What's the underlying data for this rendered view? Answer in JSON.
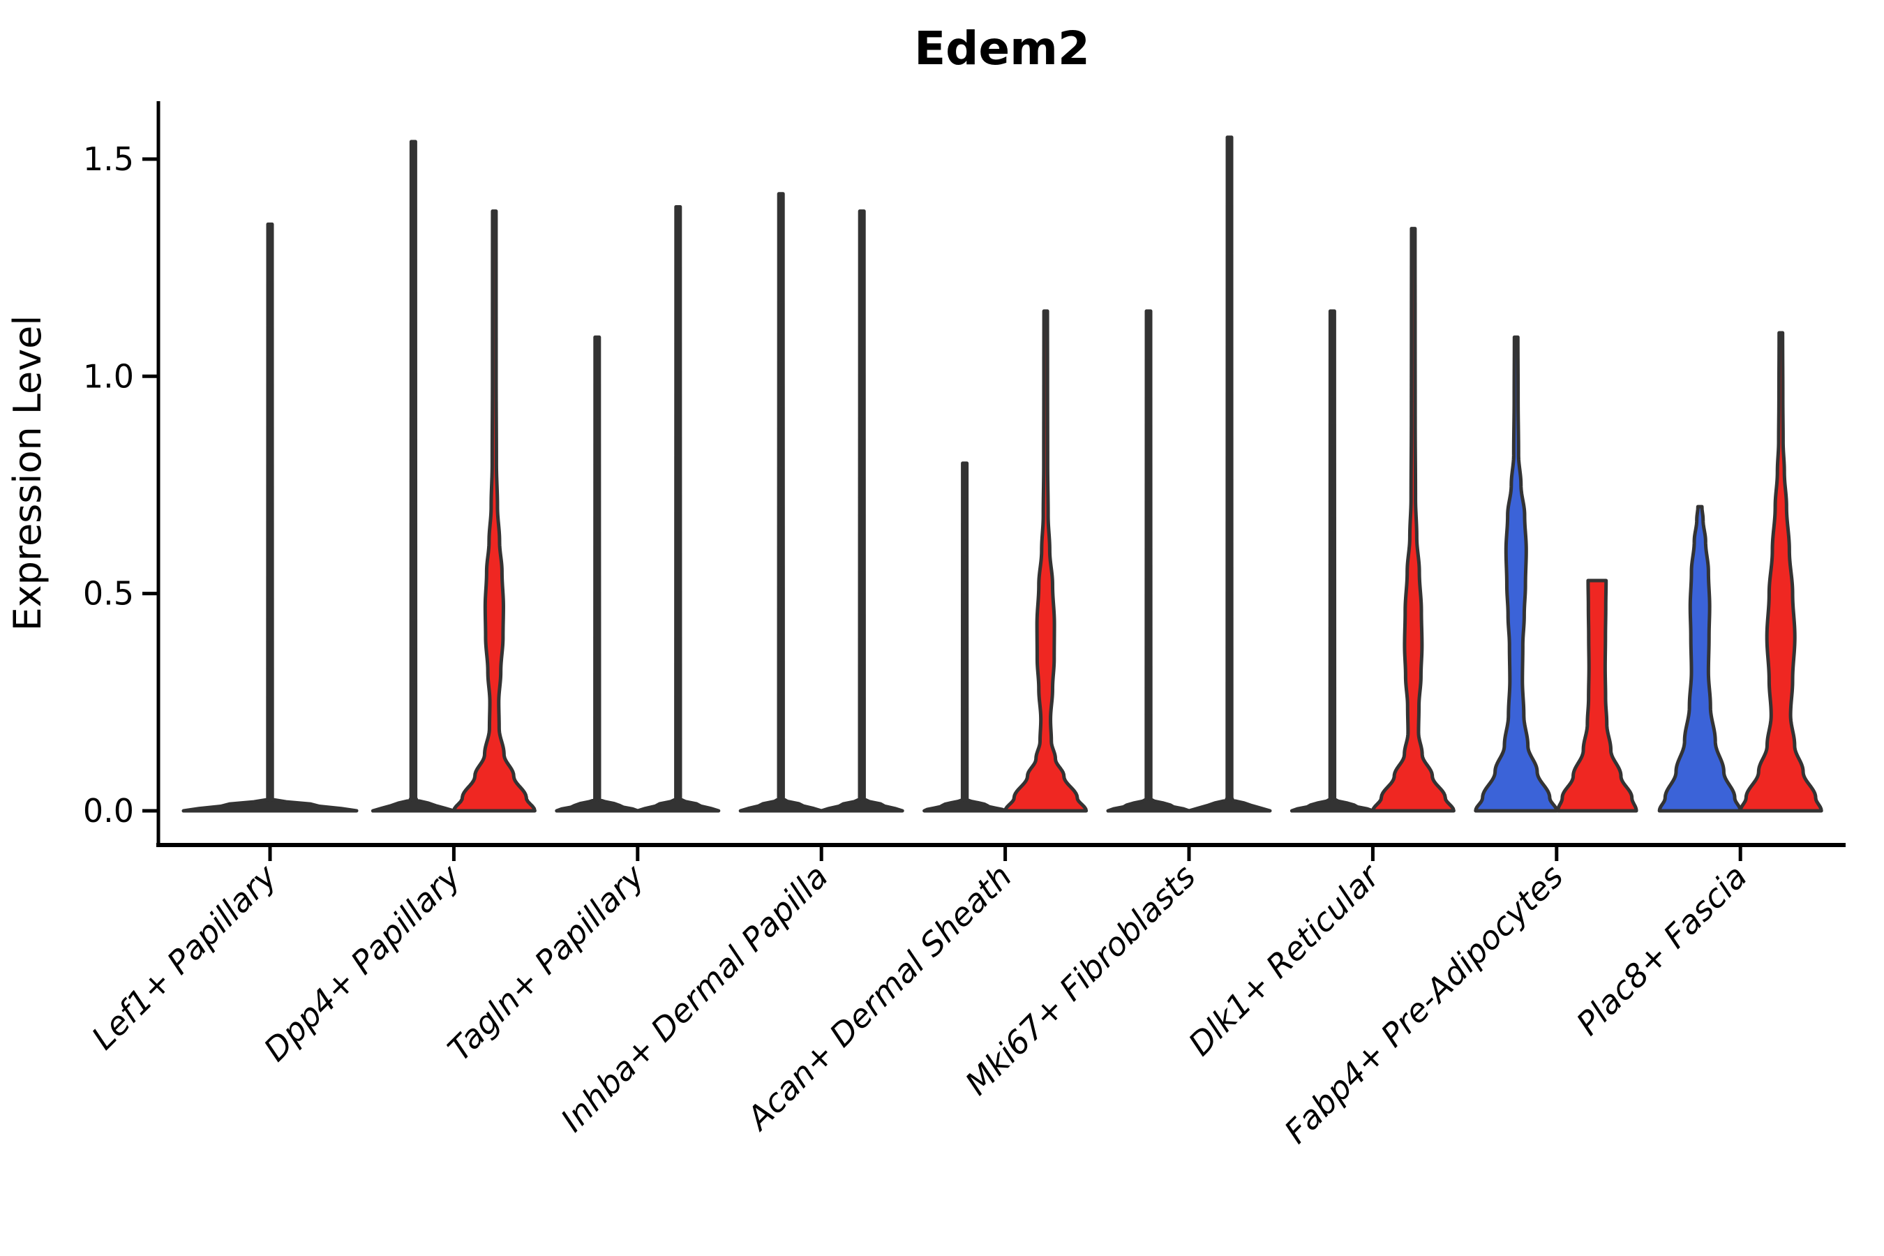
{
  "chart_data": {
    "type": "violin",
    "title": "Edem2",
    "xlabel": "",
    "ylabel": "Expression Level",
    "yticks": [
      0.0,
      0.5,
      1.0,
      1.5
    ],
    "ylim": [
      0,
      1.63
    ],
    "grid": false,
    "legend_position": "none",
    "colors": {
      "blue": "#3B63D8",
      "red": "#EF2722",
      "dark": "#333333",
      "outline": "#333333",
      "axis": "#000000"
    },
    "categories": [
      "Lef1+ Papillary",
      "Dpp4+ Papillary",
      "Tagln+ Papillary",
      "Inhba+ Dermal Papilla",
      "Acan+ Dermal Sheath",
      "Mki67+ Fibroblasts",
      "Dlk1+ Reticular",
      "Fabp4+ Pre-Adipocytes",
      "Plac8+ Fascia"
    ],
    "groups": [
      {
        "category": "Lef1+ Papillary",
        "violins": [
          {
            "position": "center",
            "fill": "dark",
            "max_expression": 1.35,
            "shape": "spike",
            "flat_top": false
          }
        ]
      },
      {
        "category": "Dpp4+ Papillary",
        "violins": [
          {
            "position": "left",
            "fill": "dark",
            "max_expression": 1.54,
            "shape": "spike",
            "flat_top": false
          },
          {
            "position": "right",
            "fill": "red",
            "max_expression": 1.38,
            "shape": "profile",
            "flat_top": false,
            "profile": [
              [
                0,
                1
              ],
              [
                0.03,
                0.79
              ],
              [
                0.08,
                0.48
              ],
              [
                0.13,
                0.24
              ],
              [
                0.19,
                0.12
              ],
              [
                0.25,
                0.11
              ],
              [
                0.32,
                0.16
              ],
              [
                0.4,
                0.215
              ],
              [
                0.47,
                0.225
              ],
              [
                0.55,
                0.19
              ],
              [
                0.62,
                0.13
              ],
              [
                0.7,
                0.078
              ],
              [
                0.8,
                0.052
              ],
              [
                1.0,
                0.045
              ],
              [
                1.2,
                0.044
              ],
              [
                1.38,
                0.043
              ]
            ]
          }
        ]
      },
      {
        "category": "Tagln+ Papillary",
        "violins": [
          {
            "position": "left",
            "fill": "dark",
            "max_expression": 1.09,
            "shape": "spike",
            "flat_top": false
          },
          {
            "position": "right",
            "fill": "dark",
            "max_expression": 1.39,
            "shape": "spike",
            "flat_top": false
          }
        ]
      },
      {
        "category": "Inhba+ Dermal Papilla",
        "violins": [
          {
            "position": "left",
            "fill": "dark",
            "max_expression": 1.42,
            "shape": "spike",
            "flat_top": false
          },
          {
            "position": "right",
            "fill": "dark",
            "max_expression": 1.38,
            "shape": "spike",
            "flat_top": false
          }
        ]
      },
      {
        "category": "Acan+ Dermal Sheath",
        "violins": [
          {
            "position": "left",
            "fill": "dark",
            "max_expression": 0.8,
            "shape": "spike",
            "flat_top": false
          },
          {
            "position": "right",
            "fill": "red",
            "max_expression": 1.15,
            "shape": "profile",
            "flat_top": false,
            "profile": [
              [
                0,
                1
              ],
              [
                0.03,
                0.78
              ],
              [
                0.08,
                0.45
              ],
              [
                0.12,
                0.24
              ],
              [
                0.16,
                0.14
              ],
              [
                0.21,
                0.12
              ],
              [
                0.28,
                0.17
              ],
              [
                0.35,
                0.21
              ],
              [
                0.43,
                0.215
              ],
              [
                0.52,
                0.17
              ],
              [
                0.6,
                0.1
              ],
              [
                0.68,
                0.06
              ],
              [
                0.8,
                0.048
              ],
              [
                1.0,
                0.045
              ],
              [
                1.15,
                0.043
              ]
            ]
          }
        ]
      },
      {
        "category": "Mki67+ Fibroblasts",
        "violins": [
          {
            "position": "left",
            "fill": "dark",
            "max_expression": 1.15,
            "shape": "spike",
            "flat_top": false
          },
          {
            "position": "right",
            "fill": "dark",
            "max_expression": 1.55,
            "shape": "spike",
            "flat_top": false
          }
        ]
      },
      {
        "category": "Dlk1+ Reticular",
        "violins": [
          {
            "position": "left",
            "fill": "dark",
            "max_expression": 1.15,
            "shape": "spike",
            "flat_top": false
          },
          {
            "position": "right",
            "fill": "red",
            "max_expression": 1.34,
            "shape": "profile",
            "flat_top": false,
            "profile": [
              [
                0,
                1
              ],
              [
                0.03,
                0.79
              ],
              [
                0.08,
                0.47
              ],
              [
                0.13,
                0.22
              ],
              [
                0.18,
                0.13
              ],
              [
                0.24,
                0.14
              ],
              [
                0.31,
                0.19
              ],
              [
                0.38,
                0.215
              ],
              [
                0.46,
                0.2
              ],
              [
                0.55,
                0.15
              ],
              [
                0.63,
                0.086
              ],
              [
                0.72,
                0.055
              ],
              [
                0.9,
                0.047
              ],
              [
                1.1,
                0.045
              ],
              [
                1.34,
                0.043
              ]
            ]
          }
        ]
      },
      {
        "category": "Fabp4+ Pre-Adipocytes",
        "violins": [
          {
            "position": "left",
            "fill": "blue",
            "max_expression": 1.09,
            "shape": "profile",
            "flat_top": false,
            "profile": [
              [
                0,
                1
              ],
              [
                0.03,
                0.83
              ],
              [
                0.09,
                0.52
              ],
              [
                0.15,
                0.29
              ],
              [
                0.22,
                0.19
              ],
              [
                0.3,
                0.155
              ],
              [
                0.38,
                0.165
              ],
              [
                0.45,
                0.2
              ],
              [
                0.52,
                0.23
              ],
              [
                0.6,
                0.25
              ],
              [
                0.68,
                0.21
              ],
              [
                0.75,
                0.12
              ],
              [
                0.82,
                0.06
              ],
              [
                0.95,
                0.048
              ],
              [
                1.09,
                0.043
              ]
            ]
          },
          {
            "position": "right",
            "fill": "red",
            "max_expression": 0.53,
            "shape": "profile",
            "flat_top": true,
            "profile": [
              [
                0,
                0.97
              ],
              [
                0.03,
                0.86
              ],
              [
                0.08,
                0.59
              ],
              [
                0.14,
                0.34
              ],
              [
                0.2,
                0.24
              ],
              [
                0.26,
                0.21
              ],
              [
                0.33,
                0.2
              ],
              [
                0.4,
                0.207
              ],
              [
                0.47,
                0.215
              ],
              [
                0.53,
                0.222
              ]
            ]
          }
        ]
      },
      {
        "category": "Plac8+ Fascia",
        "violins": [
          {
            "position": "left",
            "fill": "blue",
            "max_expression": 0.7,
            "shape": "profile",
            "flat_top": false,
            "profile": [
              [
                0,
                1
              ],
              [
                0.03,
                0.86
              ],
              [
                0.09,
                0.59
              ],
              [
                0.16,
                0.38
              ],
              [
                0.24,
                0.26
              ],
              [
                0.32,
                0.21
              ],
              [
                0.4,
                0.225
              ],
              [
                0.47,
                0.24
              ],
              [
                0.55,
                0.21
              ],
              [
                0.62,
                0.14
              ],
              [
                0.67,
                0.078
              ],
              [
                0.7,
                0.05
              ]
            ]
          },
          {
            "position": "right",
            "fill": "red",
            "max_expression": 1.1,
            "shape": "profile",
            "flat_top": false,
            "profile": [
              [
                0,
                1
              ],
              [
                0.03,
                0.86
              ],
              [
                0.09,
                0.55
              ],
              [
                0.15,
                0.34
              ],
              [
                0.22,
                0.24
              ],
              [
                0.3,
                0.29
              ],
              [
                0.4,
                0.345
              ],
              [
                0.5,
                0.29
              ],
              [
                0.6,
                0.21
              ],
              [
                0.7,
                0.14
              ],
              [
                0.78,
                0.086
              ],
              [
                0.85,
                0.055
              ],
              [
                0.95,
                0.048
              ],
              [
                1.1,
                0.043
              ]
            ]
          }
        ]
      }
    ]
  }
}
